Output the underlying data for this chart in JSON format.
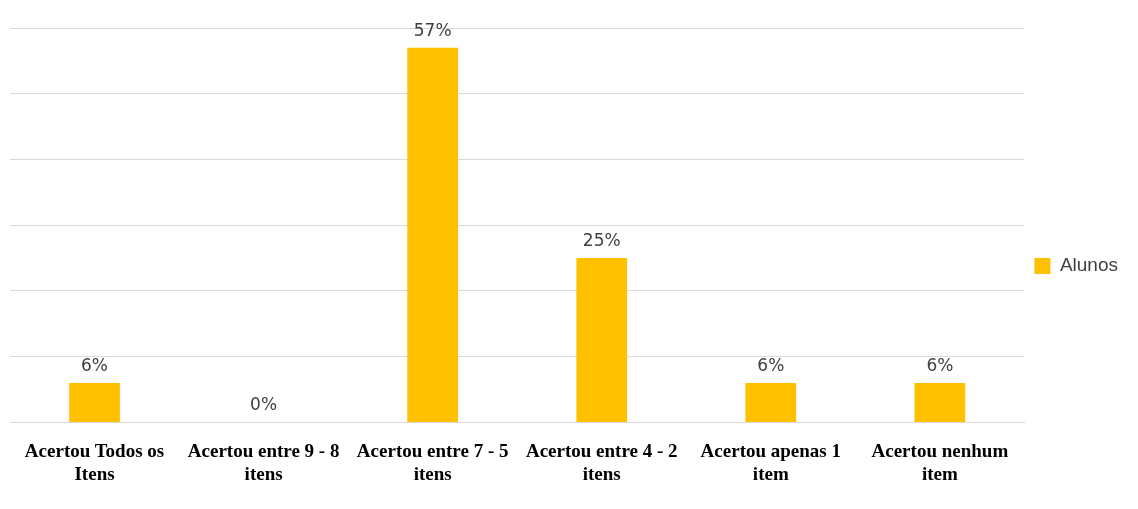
{
  "chart_data": {
    "type": "bar",
    "categories": [
      "Acertou Todos os Itens",
      "Acertou entre 9 - 8 itens",
      "Acertou entre 7 - 5 itens",
      "Acertou entre 4 - 2 itens",
      "Acertou apenas 1 item",
      "Acertou nenhum item"
    ],
    "series": [
      {
        "name": "Alunos",
        "color": "#ffc000",
        "values": [
          6,
          0,
          57,
          25,
          6,
          6
        ],
        "value_labels": [
          "6%",
          "0%",
          "57%",
          "25%",
          "6%",
          "6%"
        ]
      }
    ],
    "ylim": [
      0,
      60
    ],
    "yticks": [
      {
        "value": 0,
        "label": null
      },
      {
        "value": 10,
        "label": null
      },
      {
        "value": 20,
        "label": null
      },
      {
        "value": 30,
        "label": null
      },
      {
        "value": 40,
        "label": null
      },
      {
        "value": 50,
        "label": null
      },
      {
        "value": 60,
        "label": null
      }
    ],
    "grid": "y",
    "legend": "right",
    "tick_labels": "x"
  }
}
